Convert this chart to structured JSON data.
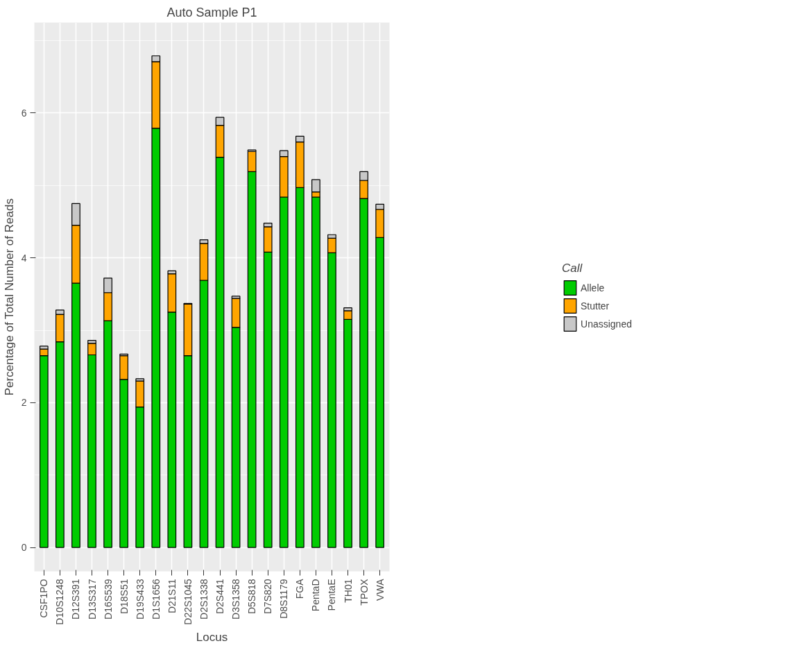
{
  "chart_data": {
    "type": "bar",
    "stacked": true,
    "title": "Auto Sample P1",
    "xlabel": "Locus",
    "ylabel": "Percentage of Total Number of Reads",
    "legend_title": "Call",
    "legend": "right",
    "grid": true,
    "categories": [
      "CSF1PO",
      "D10S1248",
      "D12S391",
      "D13S317",
      "D16S539",
      "D18S51",
      "D19S433",
      "D1S1656",
      "D21S11",
      "D22S1045",
      "D2S1338",
      "D2S441",
      "D3S1358",
      "D5S818",
      "D7S820",
      "D8S1179",
      "FGA",
      "PentaD",
      "PentaE",
      "TH01",
      "TPOX",
      "VWA"
    ],
    "series": [
      {
        "name": "Allele",
        "color": "#00cc00",
        "values": [
          2.65,
          2.84,
          3.65,
          2.66,
          3.13,
          2.32,
          1.94,
          5.79,
          3.25,
          2.65,
          3.69,
          5.39,
          3.04,
          5.19,
          4.08,
          4.84,
          4.97,
          4.84,
          4.07,
          3.15,
          4.82,
          4.28
        ]
      },
      {
        "name": "Stutter",
        "color": "#ffa500",
        "values": [
          0.09,
          0.38,
          0.8,
          0.16,
          0.39,
          0.33,
          0.36,
          0.92,
          0.53,
          0.71,
          0.51,
          0.44,
          0.4,
          0.28,
          0.35,
          0.56,
          0.63,
          0.07,
          0.2,
          0.12,
          0.25,
          0.39
        ]
      },
      {
        "name": "Unassigned",
        "color": "#c8c8c8",
        "values": [
          0.04,
          0.06,
          0.3,
          0.04,
          0.2,
          0.02,
          0.03,
          0.08,
          0.04,
          0.01,
          0.05,
          0.11,
          0.03,
          0.02,
          0.05,
          0.08,
          0.08,
          0.17,
          0.05,
          0.04,
          0.12,
          0.07
        ]
      }
    ],
    "ylim": [
      -0.33,
      7.25
    ],
    "yticks": [
      0,
      2,
      4,
      6
    ]
  }
}
